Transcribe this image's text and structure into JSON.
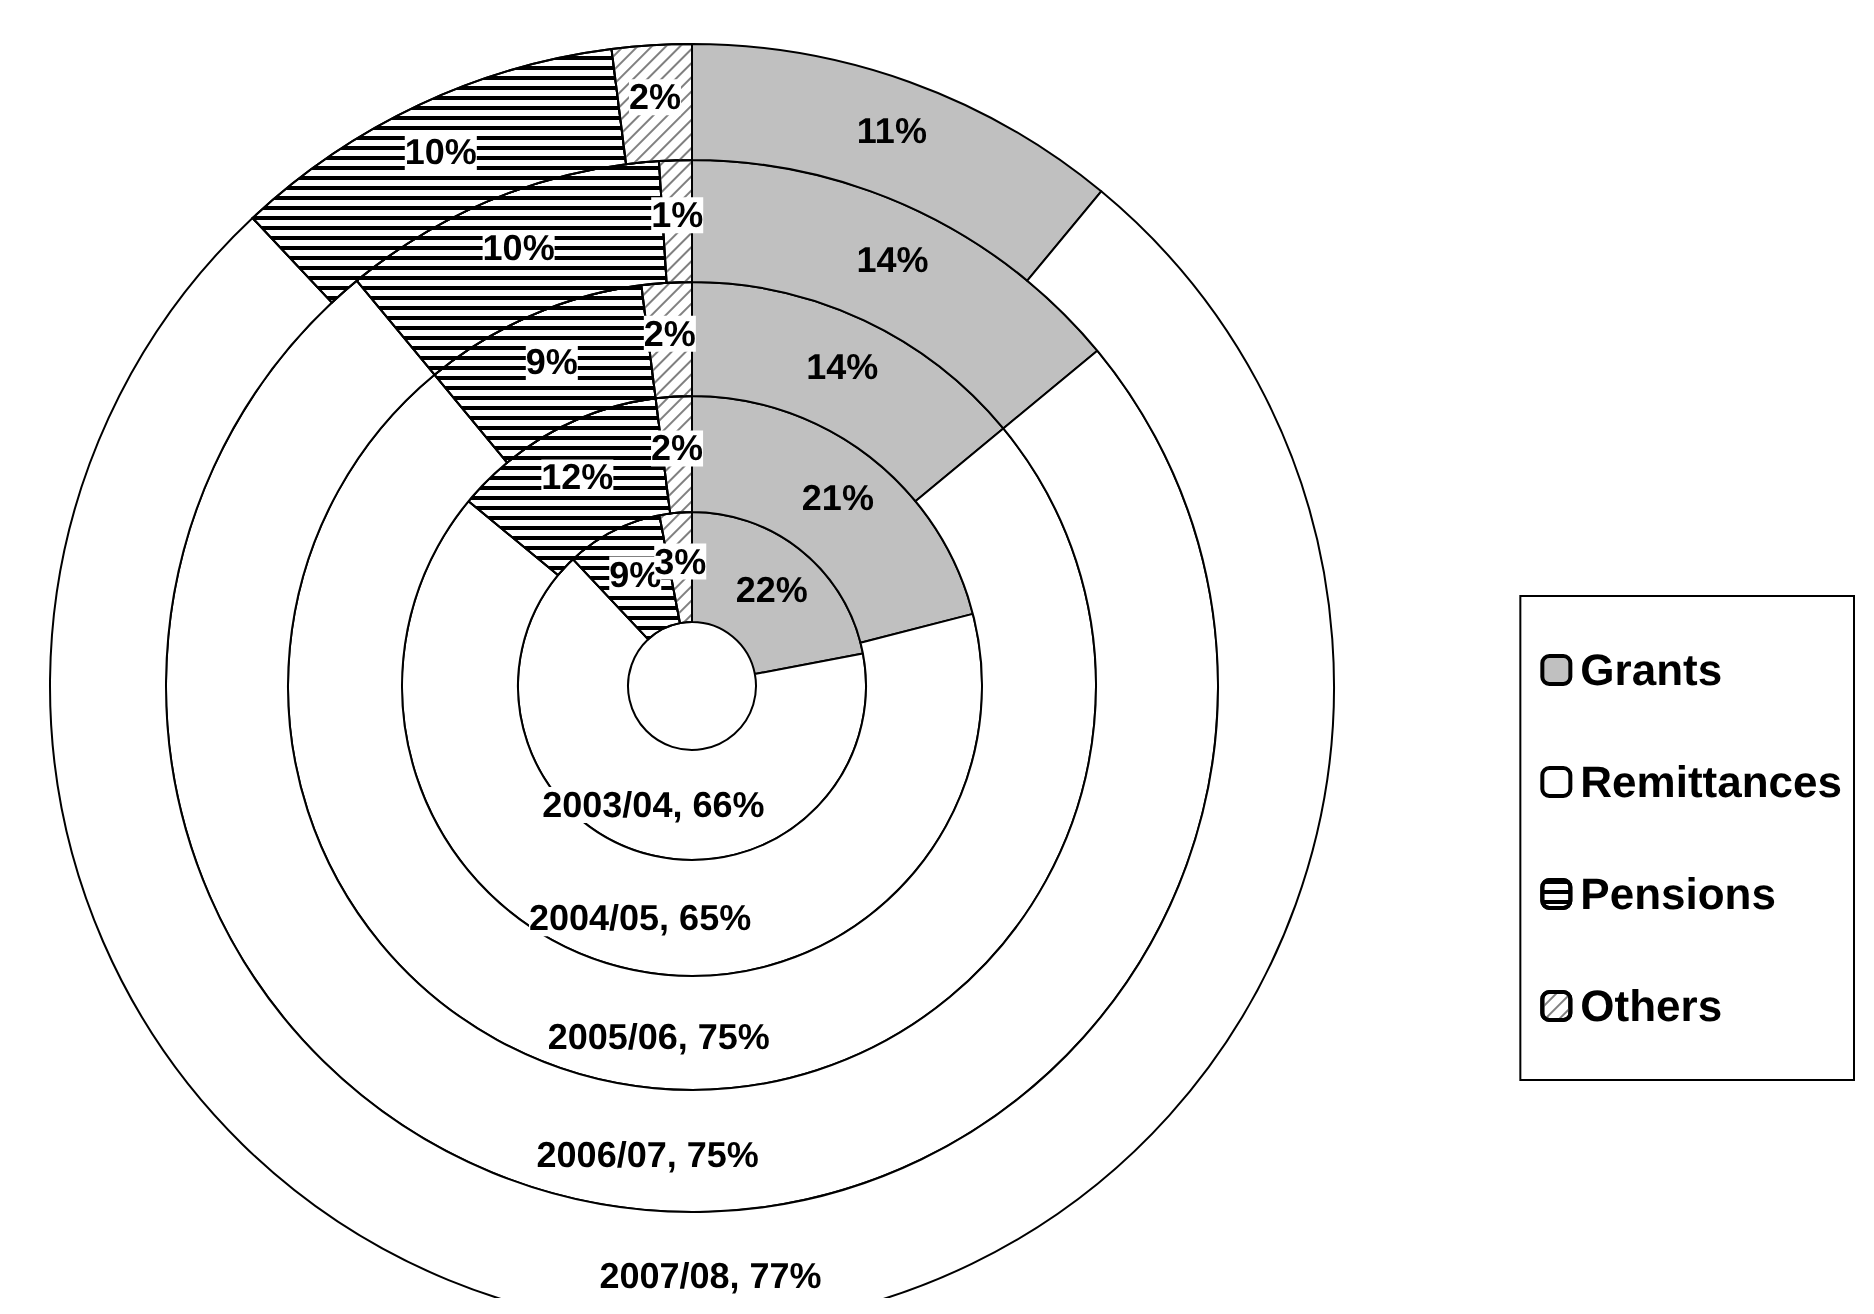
{
  "chart_data": {
    "type": "donut",
    "categories": [
      "Grants",
      "Remittances",
      "Pensions",
      "Others"
    ],
    "colors": [
      "#c0c0c0",
      "#ffffff",
      "#ffffff",
      "#ffffff"
    ],
    "legend": "right",
    "series": [
      {
        "values": [
          22,
          66,
          9,
          3
        ],
        "value_labels": [
          "22%",
          "2003/04, 66%",
          "9%",
          "3%"
        ]
      },
      {
        "values": [
          21,
          65,
          12,
          2
        ],
        "value_labels": [
          "21%",
          "2004/05, 65%",
          "12%",
          "2%"
        ]
      },
      {
        "values": [
          14,
          75,
          9,
          2
        ],
        "value_labels": [
          "14%",
          "2005/06, 75%",
          "9%",
          "2%"
        ]
      },
      {
        "values": [
          14,
          75,
          10,
          1
        ],
        "value_labels": [
          "14%",
          "2006/07, 75%",
          "10%",
          "1%"
        ]
      },
      {
        "values": [
          11,
          77,
          10,
          2
        ],
        "value_labels": [
          "11%",
          "2007/08, 77%",
          "10%",
          "2%"
        ]
      }
    ]
  }
}
